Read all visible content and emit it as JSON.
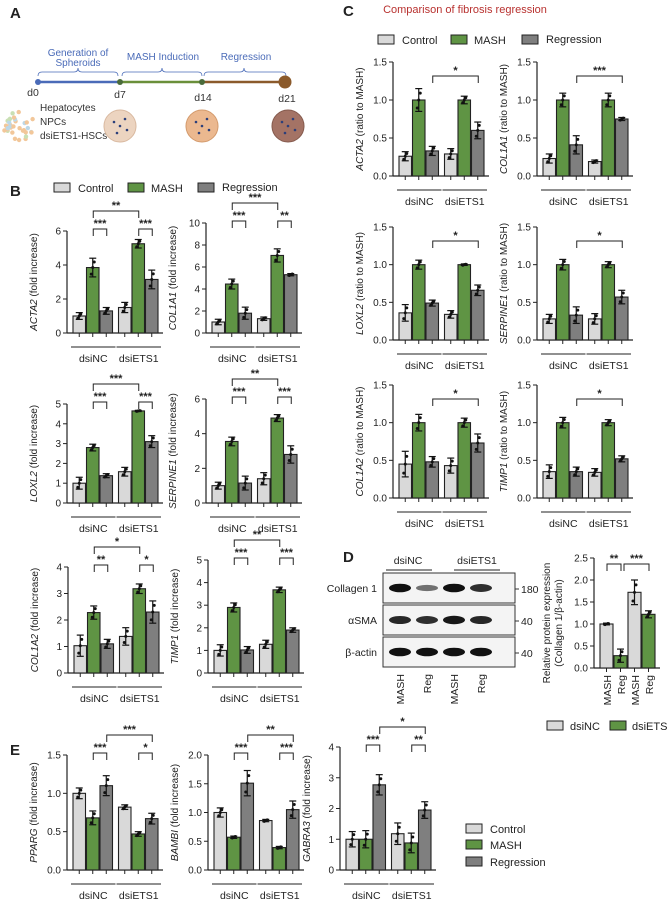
{
  "colors": {
    "control": "#d9d9d9",
    "mash": "#5f9444",
    "regression": "#7f7f7f",
    "dsiNC": "#d9d9d9",
    "dsiETS1": "#5f9444",
    "outline": "#222222",
    "title_red": "#b8312f",
    "timeline_blue": "#4a6bb8",
    "timeline_green": "#6a8f3a",
    "timeline_brown": "#8b5a2b"
  },
  "panel_labels": {
    "a": "A",
    "b": "B",
    "c": "C",
    "d": "D",
    "e": "E"
  },
  "panel_a": {
    "phases": [
      "Generation of",
      "Spheroids",
      "MASH Induction",
      "Regression"
    ],
    "days": [
      "d0",
      "d7",
      "d14",
      "d21"
    ],
    "cells": [
      "Hepatocytes",
      "NPCs",
      "dsiETS1-HSCs"
    ]
  },
  "legend_main": [
    "Control",
    "MASH",
    "Regression"
  ],
  "panel_c": {
    "title": "Comparison of fibrosis regression"
  },
  "panel_d": {
    "groups": [
      "dsiNC",
      "dsiETS1"
    ],
    "rows": [
      {
        "label": "Collagen 1",
        "mw": "180",
        "band_intensity": [
          1.0,
          0.35,
          1.0,
          0.8
        ]
      },
      {
        "label": "αSMA",
        "mw": "40",
        "band_intensity": [
          0.85,
          0.8,
          0.95,
          0.85
        ]
      },
      {
        "label": "β-actin",
        "mw": "40",
        "band_intensity": [
          1.0,
          1.0,
          1.0,
          1.0
        ]
      }
    ],
    "lanes": [
      "MASH",
      "Reg",
      "MASH",
      "Reg"
    ],
    "legend": [
      "dsiNC",
      "dsiETS1"
    ]
  },
  "chart_data": [
    {
      "id": "B-ACTA2",
      "panel": "B",
      "type": "bar",
      "gene": "ACTA2",
      "ylabel_suffix": " (fold increase)",
      "groups": [
        "dsiNC",
        "dsiETS1"
      ],
      "series": [
        "Control",
        "MASH",
        "Regression"
      ],
      "values": [
        1.0,
        3.85,
        1.3,
        1.5,
        5.25,
        3.15
      ],
      "errors": [
        0.2,
        0.55,
        0.2,
        0.3,
        0.25,
        0.55
      ],
      "ylim": [
        0,
        6
      ],
      "yticks": [
        "0",
        "2",
        "4",
        "6"
      ],
      "significance": [
        {
          "from": 1,
          "to": 4,
          "label": "**"
        },
        {
          "from": 1,
          "to": 2,
          "label": "***"
        },
        {
          "from": 4,
          "to": 5,
          "label": "***"
        }
      ]
    },
    {
      "id": "B-COL1A1",
      "panel": "B",
      "type": "bar",
      "gene": "COL1A1",
      "ylabel_suffix": " (fold increase)",
      "groups": [
        "dsiNC",
        "dsiETS1"
      ],
      "series": [
        "Control",
        "MASH",
        "Regression"
      ],
      "values": [
        1.0,
        4.45,
        1.8,
        1.3,
        7.05,
        5.3
      ],
      "errors": [
        0.25,
        0.45,
        0.55,
        0.15,
        0.6,
        0.1
      ],
      "ylim": [
        0,
        10
      ],
      "yticks": [
        "0",
        "2",
        "4",
        "6",
        "8",
        "10"
      ],
      "significance": [
        {
          "from": 1,
          "to": 4,
          "label": "***"
        },
        {
          "from": 1,
          "to": 2,
          "label": "***"
        },
        {
          "from": 4,
          "to": 5,
          "label": "**"
        }
      ]
    },
    {
      "id": "B-LOXL2",
      "panel": "B",
      "type": "bar",
      "gene": "LOXL2",
      "ylabel_suffix": " (fold increase)",
      "groups": [
        "dsiNC",
        "dsiETS1"
      ],
      "series": [
        "Control",
        "MASH",
        "Regression"
      ],
      "values": [
        1.0,
        2.8,
        1.38,
        1.58,
        4.65,
        3.1
      ],
      "errors": [
        0.3,
        0.17,
        0.1,
        0.22,
        0.03,
        0.3
      ],
      "ylim": [
        0,
        5
      ],
      "yticks": [
        "0",
        "1",
        "2",
        "3",
        "4",
        "5"
      ],
      "significance": [
        {
          "from": 1,
          "to": 4,
          "label": "***"
        },
        {
          "from": 1,
          "to": 2,
          "label": "***"
        },
        {
          "from": 4,
          "to": 5,
          "label": "***"
        }
      ]
    },
    {
      "id": "B-SERPINE1",
      "panel": "B",
      "type": "bar",
      "gene": "SERPINE1",
      "ylabel_suffix": " (fold increase)",
      "groups": [
        "dsiNC",
        "dsiETS1"
      ],
      "series": [
        "Control",
        "MASH",
        "Regression"
      ],
      "values": [
        1.0,
        3.55,
        1.15,
        1.4,
        4.9,
        2.8
      ],
      "errors": [
        0.2,
        0.25,
        0.4,
        0.35,
        0.2,
        0.5
      ],
      "ylim": [
        0,
        6
      ],
      "yticks": [
        "0",
        "2",
        "4",
        "6"
      ],
      "significance": [
        {
          "from": 1,
          "to": 4,
          "label": "**"
        },
        {
          "from": 1,
          "to": 2,
          "label": "***"
        },
        {
          "from": 4,
          "to": 5,
          "label": "***"
        }
      ]
    },
    {
      "id": "B-COL1A2",
      "panel": "B",
      "type": "bar",
      "gene": "COL1A2",
      "ylabel_suffix": " (fold increase)",
      "groups": [
        "dsiNC",
        "dsiETS1"
      ],
      "series": [
        "Control",
        "MASH",
        "Regression"
      ],
      "values": [
        1.03,
        2.28,
        1.1,
        1.38,
        3.18,
        2.3
      ],
      "errors": [
        0.4,
        0.25,
        0.17,
        0.33,
        0.18,
        0.42
      ],
      "ylim": [
        0,
        4
      ],
      "yticks": [
        "0",
        "1",
        "2",
        "3",
        "4"
      ],
      "significance": [
        {
          "from": 1,
          "to": 4,
          "label": "*"
        },
        {
          "from": 1,
          "to": 2,
          "label": "**"
        },
        {
          "from": 4,
          "to": 5,
          "label": "*"
        }
      ]
    },
    {
      "id": "B-TIMP1",
      "panel": "B",
      "type": "bar",
      "gene": "TIMP1",
      "ylabel_suffix": " (fold increase)",
      "groups": [
        "dsiNC",
        "dsiETS1"
      ],
      "series": [
        "Control",
        "MASH",
        "Regression"
      ],
      "values": [
        1.0,
        2.9,
        1.02,
        1.27,
        3.68,
        1.9
      ],
      "errors": [
        0.25,
        0.2,
        0.15,
        0.18,
        0.12,
        0.1
      ],
      "ylim": [
        0,
        5
      ],
      "yticks": [
        "0",
        "1",
        "2",
        "3",
        "4",
        "5"
      ],
      "significance": [
        {
          "from": 1,
          "to": 4,
          "label": "**"
        },
        {
          "from": 1,
          "to": 2,
          "label": "***"
        },
        {
          "from": 4,
          "to": 5,
          "label": "***"
        }
      ]
    },
    {
      "id": "C-ACTA2",
      "panel": "C",
      "type": "bar",
      "gene": "ACTA2",
      "ylabel_suffix": " (ratio to MASH)",
      "groups": [
        "dsiNC",
        "dsiETS1"
      ],
      "series": [
        "Control",
        "MASH",
        "Regression"
      ],
      "values": [
        0.26,
        1.0,
        0.33,
        0.29,
        1.0,
        0.6
      ],
      "errors": [
        0.06,
        0.15,
        0.06,
        0.07,
        0.05,
        0.11
      ],
      "ylim": [
        0,
        1.5
      ],
      "yticks": [
        "0.0",
        "0.5",
        "1.0",
        "1.5"
      ],
      "significance": [
        {
          "from": 2,
          "to": 5,
          "label": "*"
        }
      ]
    },
    {
      "id": "C-COL1A1",
      "panel": "C",
      "type": "bar",
      "gene": "COL1A1",
      "ylabel_suffix": " (ratio to MASH)",
      "groups": [
        "dsiNC",
        "dsiETS1"
      ],
      "series": [
        "Control",
        "MASH",
        "Regression"
      ],
      "values": [
        0.23,
        1.0,
        0.41,
        0.19,
        1.0,
        0.75
      ],
      "errors": [
        0.06,
        0.09,
        0.12,
        0.02,
        0.09,
        0.02
      ],
      "ylim": [
        0,
        1.5
      ],
      "yticks": [
        "0.0",
        "0.5",
        "1.0",
        "1.5"
      ],
      "significance": [
        {
          "from": 2,
          "to": 5,
          "label": "***"
        }
      ]
    },
    {
      "id": "C-LOXL2",
      "panel": "C",
      "type": "bar",
      "gene": "LOXL2",
      "ylabel_suffix": " (ratio to MASH)",
      "groups": [
        "dsiNC",
        "dsiETS1"
      ],
      "series": [
        "Control",
        "MASH",
        "Regression"
      ],
      "values": [
        0.36,
        1.0,
        0.49,
        0.34,
        1.0,
        0.66
      ],
      "errors": [
        0.11,
        0.06,
        0.04,
        0.05,
        0.01,
        0.07
      ],
      "ylim": [
        0,
        1.5
      ],
      "yticks": [
        "0.0",
        "0.5",
        "1.0",
        "1.5"
      ],
      "significance": [
        {
          "from": 2,
          "to": 5,
          "label": "*"
        }
      ]
    },
    {
      "id": "C-SERPINE1",
      "panel": "C",
      "type": "bar",
      "gene": "SERPINE1",
      "ylabel_suffix": " (ratio to MASH)",
      "groups": [
        "dsiNC",
        "dsiETS1"
      ],
      "series": [
        "Control",
        "MASH",
        "Regression"
      ],
      "values": [
        0.28,
        1.0,
        0.33,
        0.28,
        1.0,
        0.57
      ],
      "errors": [
        0.06,
        0.07,
        0.11,
        0.07,
        0.04,
        0.09
      ],
      "ylim": [
        0,
        1.5
      ],
      "yticks": [
        "0.0",
        "0.5",
        "1.0",
        "1.5"
      ],
      "significance": [
        {
          "from": 2,
          "to": 5,
          "label": "*"
        }
      ]
    },
    {
      "id": "C-COL1A2",
      "panel": "C",
      "type": "bar",
      "gene": "COL1A2",
      "ylabel_suffix": " (ratio to MASH)",
      "groups": [
        "dsiNC",
        "dsiETS1"
      ],
      "series": [
        "Control",
        "MASH",
        "Regression"
      ],
      "values": [
        0.45,
        1.0,
        0.48,
        0.43,
        1.0,
        0.73
      ],
      "errors": [
        0.17,
        0.11,
        0.07,
        0.1,
        0.06,
        0.12
      ],
      "ylim": [
        0,
        1.5
      ],
      "yticks": [
        "0.0",
        "0.5",
        "1.0",
        "1.5"
      ],
      "significance": [
        {
          "from": 2,
          "to": 5,
          "label": "*"
        }
      ]
    },
    {
      "id": "C-TIMP1",
      "panel": "C",
      "type": "bar",
      "gene": "TIMP1",
      "ylabel_suffix": " (ratio to MASH)",
      "groups": [
        "dsiNC",
        "dsiETS1"
      ],
      "series": [
        "Control",
        "MASH",
        "Regression"
      ],
      "values": [
        0.35,
        1.0,
        0.35,
        0.34,
        1.0,
        0.52
      ],
      "errors": [
        0.09,
        0.07,
        0.06,
        0.05,
        0.04,
        0.04
      ],
      "ylim": [
        0,
        1.5
      ],
      "yticks": [
        "0.0",
        "0.5",
        "1.0",
        "1.5"
      ],
      "significance": [
        {
          "from": 2,
          "to": 5,
          "label": "*"
        }
      ]
    },
    {
      "id": "D-Collagen1",
      "panel": "D",
      "type": "bar",
      "ylabel_lines": [
        "Relative protein expression",
        "(Collagen 1/β-actin)"
      ],
      "categories": [
        "MASH",
        "Reg",
        "MASH",
        "Reg"
      ],
      "bar_series": [
        "dsiNC",
        "dsiETS1",
        "dsiNC",
        "dsiETS1"
      ],
      "values": [
        1.0,
        0.28,
        1.72,
        1.22
      ],
      "errors": [
        0.02,
        0.15,
        0.28,
        0.08
      ],
      "ylim": [
        0,
        2.5
      ],
      "yticks": [
        "0.0",
        "0.5",
        "1.0",
        "1.5",
        "2.0",
        "2.5"
      ],
      "significance": [
        {
          "from": 0,
          "to": 1,
          "label": "**"
        },
        {
          "from": 1,
          "to": 3,
          "label": "***"
        }
      ]
    },
    {
      "id": "E-PPARG",
      "panel": "E",
      "type": "bar",
      "gene": "PPARG",
      "ylabel_suffix": " (fold increase)",
      "groups": [
        "dsiNC",
        "dsiETS1"
      ],
      "series": [
        "Control",
        "MASH",
        "Regression"
      ],
      "values": [
        1.0,
        0.68,
        1.1,
        0.82,
        0.47,
        0.67
      ],
      "errors": [
        0.07,
        0.09,
        0.13,
        0.03,
        0.03,
        0.07
      ],
      "ylim": [
        0,
        1.5
      ],
      "yticks": [
        "0.0",
        "0.5",
        "1.0",
        "1.5"
      ],
      "significance": [
        {
          "from": 2,
          "to": 5,
          "label": "***"
        },
        {
          "from": 1,
          "to": 2,
          "label": "***"
        },
        {
          "from": 4,
          "to": 5,
          "label": "*"
        }
      ]
    },
    {
      "id": "E-BAMBI",
      "panel": "E",
      "type": "bar",
      "gene": "BAMBI",
      "ylabel_suffix": " (fold increase)",
      "groups": [
        "dsiNC",
        "dsiETS1"
      ],
      "series": [
        "Control",
        "MASH",
        "Regression"
      ],
      "values": [
        1.0,
        0.57,
        1.51,
        0.86,
        0.39,
        1.05
      ],
      "errors": [
        0.08,
        0.02,
        0.22,
        0.02,
        0.02,
        0.15
      ],
      "ylim": [
        0,
        2.0
      ],
      "yticks": [
        "0.0",
        "0.5",
        "1.0",
        "1.5",
        "2.0"
      ],
      "significance": [
        {
          "from": 2,
          "to": 5,
          "label": "**"
        },
        {
          "from": 1,
          "to": 2,
          "label": "***"
        },
        {
          "from": 4,
          "to": 5,
          "label": "***"
        }
      ]
    },
    {
      "id": "E-GABRA3",
      "panel": "E",
      "type": "bar",
      "gene": "GABRA3",
      "ylabel_suffix": " (fold increase)",
      "groups": [
        "dsiNC",
        "dsiETS1"
      ],
      "series": [
        "Control",
        "MASH",
        "Regression"
      ],
      "values": [
        1.0,
        1.0,
        2.77,
        1.18,
        0.88,
        1.95
      ],
      "errors": [
        0.25,
        0.28,
        0.33,
        0.35,
        0.32,
        0.27
      ],
      "ylim": [
        0,
        4
      ],
      "yticks": [
        "0",
        "1",
        "2",
        "3",
        "4"
      ],
      "significance": [
        {
          "from": 2,
          "to": 5,
          "label": "*"
        },
        {
          "from": 1,
          "to": 2,
          "label": "***"
        },
        {
          "from": 4,
          "to": 5,
          "label": "**"
        }
      ]
    }
  ]
}
